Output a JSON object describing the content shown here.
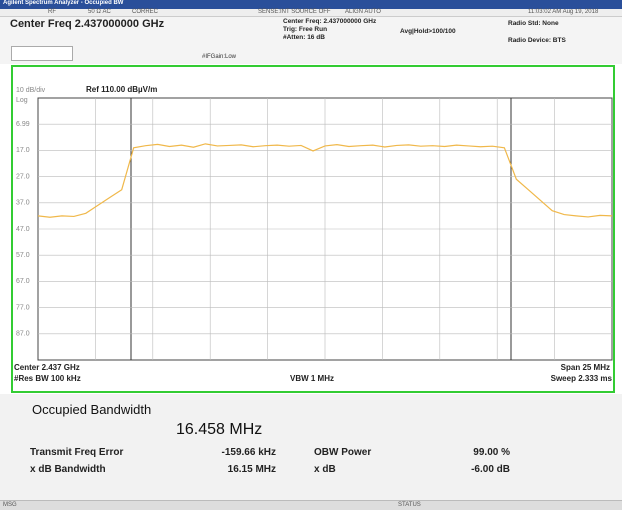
{
  "title_bar": "Agilent Spectrum Analyzer - Occupied BW",
  "status_row": {
    "rf": "RF",
    "input": "50 Ω  AC",
    "correc": "CORREC",
    "sense": "SENSE:INT  SOURCE OFF",
    "align": "ALIGN AUTO",
    "time": "11:03:02 AM Aug 19, 2018"
  },
  "header": {
    "center_freq": "Center Freq 2.437000000 GHz",
    "ifgain": "#IFGain:Low",
    "info": [
      "Center Freq: 2.437000000 GHz",
      "Trig: Free Run",
      "#Atten: 16 dB"
    ],
    "avg_hold": "Avg|Hold>100/100",
    "radio_std": "Radio Std: None",
    "radio_device": "Radio Device: BTS"
  },
  "graph": {
    "scale": "10 dB/div",
    "ref": "Ref 110.00 dBµV/m",
    "log": "Log",
    "y_labels": [
      "6.99",
      "17.0",
      "27.0",
      "37.0",
      "47.0",
      "57.0",
      "67.0",
      "77.0",
      "87.0"
    ],
    "center": "Center  2.437 GHz",
    "res_bw": "#Res BW  100 kHz",
    "vbw": "VBW  1 MHz",
    "span": "Span 25 MHz",
    "sweep": "Sweep  2.333 ms",
    "trace": {
      "color": "#f0b84a",
      "ylim": [
        10,
        110
      ],
      "values": [
        65,
        64.5,
        65,
        64.8,
        66,
        69,
        72,
        75,
        91,
        91.8,
        92.3,
        91.5,
        92,
        91.2,
        92.5,
        91.7,
        91.9,
        92.1,
        91.4,
        91.8,
        92,
        91.6,
        91.9,
        89.8,
        91.7,
        92.2,
        91.5,
        91.8,
        92,
        91.3,
        91.9,
        92.1,
        91.6,
        91.8,
        91.5,
        92,
        91.7,
        91.4,
        91.6,
        91,
        79,
        75,
        71,
        67,
        65.5,
        65,
        64.6,
        65.2,
        65
      ]
    }
  },
  "results": {
    "title": "Occupied Bandwidth",
    "obw": "16.458 MHz",
    "rows": [
      [
        "Transmit Freq Error",
        "-159.66 kHz",
        "OBW Power",
        "99.00 %"
      ],
      [
        "x dB Bandwidth",
        "16.15 MHz",
        "x dB",
        "-6.00 dB"
      ]
    ]
  },
  "footer": {
    "msg": "MSG",
    "status": "STATUS"
  }
}
